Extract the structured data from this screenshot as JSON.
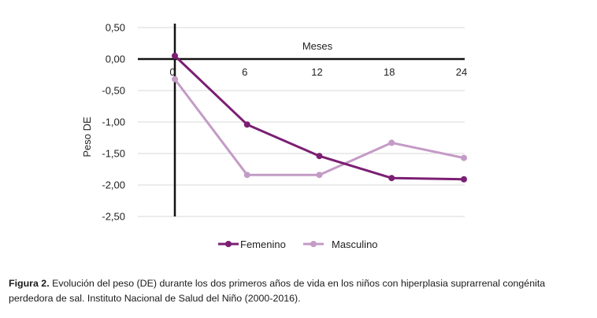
{
  "chart_data": {
    "type": "line",
    "x": [
      0,
      6,
      12,
      18,
      24
    ],
    "x_tick_labels": [
      "0",
      "6",
      "12",
      "18",
      "24"
    ],
    "xlabel": "Meses",
    "ylabel": "Peso  DE",
    "ylim": [
      -2.5,
      0.5
    ],
    "y_ticks": [
      0.5,
      0.0,
      -0.5,
      -1.0,
      -1.5,
      -2.0,
      -2.5
    ],
    "y_tick_labels": [
      "0,50",
      "0,00",
      "-0,50",
      "-1,00",
      "-1,50",
      "-2,00",
      "-2,50"
    ],
    "grid": true,
    "legend_position": "bottom",
    "series": [
      {
        "name": "Femenino",
        "color": "#7b1f73",
        "values": [
          0.05,
          -1.04,
          -1.54,
          -1.89,
          -1.91
        ]
      },
      {
        "name": "Masculino",
        "color": "#c49bc6",
        "values": [
          -0.32,
          -1.84,
          -1.84,
          -1.33,
          -1.57
        ]
      }
    ]
  },
  "caption": {
    "label": "Figura 2.",
    "text": " Evolución del peso (DE) durante los dos primeros años de vida en los niños con hiperplasia suprarrenal congénita perdedora de sal. Instituto Nacional de Salud del Niño (2000-2016)."
  }
}
